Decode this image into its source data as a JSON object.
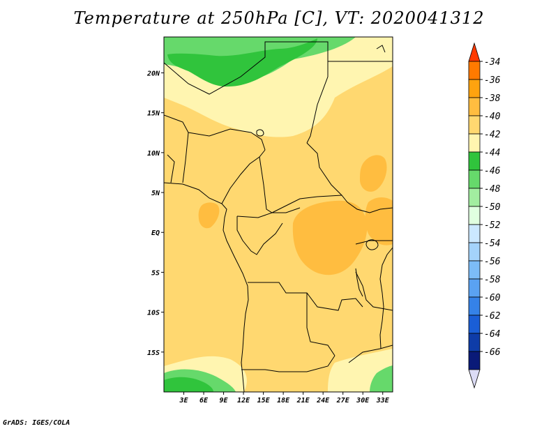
{
  "title": "Temperature at 250hPa [C], VT: 2020041312",
  "credit": "GrADS: IGES/COLA",
  "map": {
    "lon_range": [
      0,
      34.5
    ],
    "lat_range": [
      -20,
      24.5
    ],
    "lon_ticks": [
      {
        "value": 3,
        "label": "3E"
      },
      {
        "value": 6,
        "label": "6E"
      },
      {
        "value": 9,
        "label": "9E"
      },
      {
        "value": 12,
        "label": "12E"
      },
      {
        "value": 15,
        "label": "15E"
      },
      {
        "value": 18,
        "label": "18E"
      },
      {
        "value": 21,
        "label": "21E"
      },
      {
        "value": 24,
        "label": "24E"
      },
      {
        "value": 27,
        "label": "27E"
      },
      {
        "value": 30,
        "label": "30E"
      },
      {
        "value": 33,
        "label": "33E"
      }
    ],
    "lat_ticks": [
      {
        "value": 20,
        "label": "20N"
      },
      {
        "value": 15,
        "label": "15N"
      },
      {
        "value": 10,
        "label": "10N"
      },
      {
        "value": 5,
        "label": "5N"
      },
      {
        "value": 0,
        "label": "EQ"
      },
      {
        "value": -5,
        "label": "5S"
      },
      {
        "value": -10,
        "label": "10S"
      },
      {
        "value": -15,
        "label": "15S"
      }
    ]
  },
  "colorbar": {
    "levels": [
      "-34",
      "-36",
      "-38",
      "-40",
      "-42",
      "-44",
      "-46",
      "-48",
      "-50",
      "-52",
      "-54",
      "-56",
      "-58",
      "-60",
      "-62",
      "-64",
      "-66"
    ],
    "colors": [
      "#ff3a00",
      "#ff7a00",
      "#ffa30f",
      "#ffbd40",
      "#ffd870",
      "#fff5b0",
      "#30c43c",
      "#66d96b",
      "#a2eda0",
      "#e0ffe0",
      "#cbe8ff",
      "#a4d3fb",
      "#7cbcf7",
      "#5aa2f2",
      "#3582e8",
      "#1a5ed6",
      "#0e3ca8",
      "#0a1a78",
      "#dcdcf5"
    ]
  },
  "colors": {
    "ocean_fill": "#ffd870",
    "warm_patch": "#ffbd40",
    "pale_band": "#fff5b0",
    "green_band": "#66d96b",
    "dark_green_band": "#30c43c"
  }
}
